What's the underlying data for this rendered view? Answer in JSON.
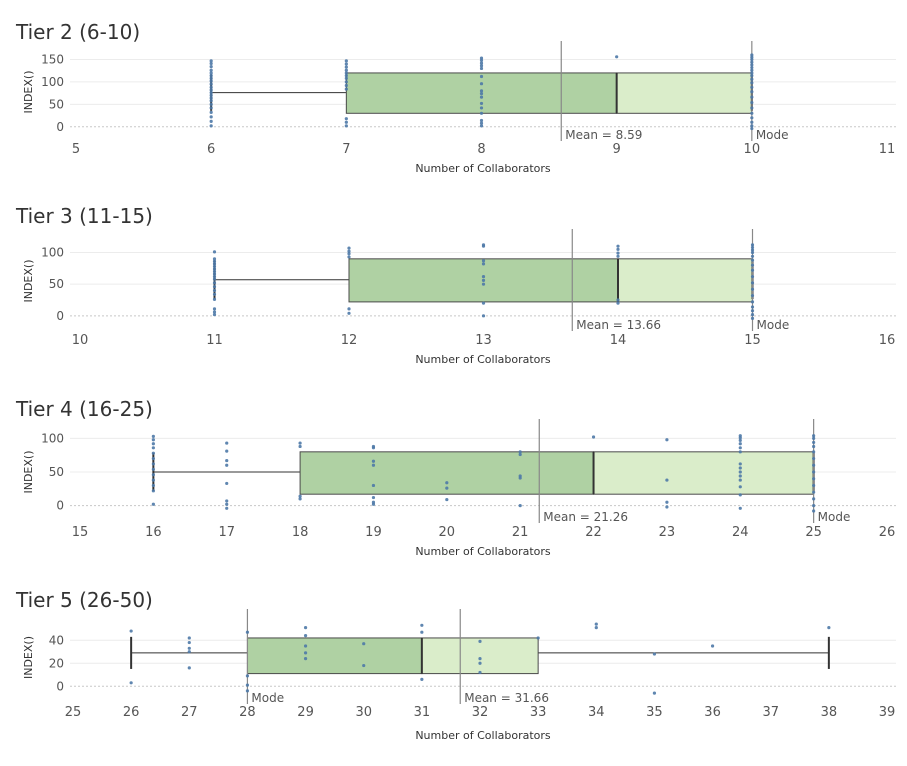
{
  "colors": {
    "box_lower": "#afd1a3",
    "box_upper": "#daedca",
    "box_stroke": "#4a4a4a",
    "whisker": "#333333",
    "points": "#4e79a7",
    "mean_line": "#888888",
    "gridline": "#ececec",
    "zero_line": "#c8c8c8",
    "text": "#555555"
  },
  "chart_data": [
    {
      "type": "boxplot",
      "title": "Tier 2 (6-10)",
      "xlabel": "Number of Collaborators",
      "ylabel": "INDEX()",
      "xlim": [
        5,
        11
      ],
      "ylim": [
        -5,
        160
      ],
      "xticks": [
        5,
        6,
        7,
        8,
        9,
        10,
        11
      ],
      "yticks": [
        0,
        50,
        100,
        150
      ],
      "box": {
        "whisker_low": 6,
        "q1": 7,
        "median": 9,
        "q3": 10,
        "whisker_high": 10
      },
      "whisker_y": 76,
      "box_y": [
        30,
        120
      ],
      "mean": {
        "value": 8.59,
        "label": "Mean = 8.59"
      },
      "mode": {
        "value": 10,
        "label": "Mode"
      },
      "points": [
        [
          6,
          2
        ],
        [
          6,
          12
        ],
        [
          6,
          22
        ],
        [
          6,
          32
        ],
        [
          6,
          42
        ],
        [
          6,
          50
        ],
        [
          6,
          58
        ],
        [
          6,
          64
        ],
        [
          6,
          70
        ],
        [
          6,
          76
        ],
        [
          6,
          82
        ],
        [
          6,
          88
        ],
        [
          6,
          95
        ],
        [
          6,
          102
        ],
        [
          6,
          108
        ],
        [
          6,
          114
        ],
        [
          6,
          120
        ],
        [
          6,
          126
        ],
        [
          6,
          134
        ],
        [
          6,
          141
        ],
        [
          6,
          147
        ],
        [
          7,
          2
        ],
        [
          7,
          10
        ],
        [
          7,
          18
        ],
        [
          7,
          84
        ],
        [
          7,
          92
        ],
        [
          7,
          100
        ],
        [
          7,
          108
        ],
        [
          7,
          114
        ],
        [
          7,
          120
        ],
        [
          7,
          126
        ],
        [
          7,
          133
        ],
        [
          7,
          140
        ],
        [
          7,
          147
        ],
        [
          8,
          2
        ],
        [
          8,
          8
        ],
        [
          8,
          14
        ],
        [
          8,
          30
        ],
        [
          8,
          42
        ],
        [
          8,
          52
        ],
        [
          8,
          66
        ],
        [
          8,
          74
        ],
        [
          8,
          80
        ],
        [
          8,
          96
        ],
        [
          8,
          112
        ],
        [
          8,
          130
        ],
        [
          8,
          136
        ],
        [
          8,
          142
        ],
        [
          8,
          148
        ],
        [
          8,
          153
        ],
        [
          9,
          156
        ],
        [
          10,
          -4
        ],
        [
          10,
          2
        ],
        [
          10,
          10
        ],
        [
          10,
          20
        ],
        [
          10,
          30
        ],
        [
          10,
          42
        ],
        [
          10,
          54
        ],
        [
          10,
          66
        ],
        [
          10,
          78
        ],
        [
          10,
          88
        ],
        [
          10,
          98
        ],
        [
          10,
          106
        ],
        [
          10,
          114
        ],
        [
          10,
          120
        ],
        [
          10,
          126
        ],
        [
          10,
          132
        ],
        [
          10,
          138
        ],
        [
          10,
          144
        ],
        [
          10,
          150
        ],
        [
          10,
          155
        ],
        [
          10,
          160
        ]
      ]
    },
    {
      "type": "boxplot",
      "title": "Tier 3 (11-15)",
      "xlabel": "Number of Collaborators",
      "ylabel": "INDEX()",
      "xlim": [
        10,
        16
      ],
      "ylim": [
        -5,
        115
      ],
      "xticks": [
        10,
        11,
        12,
        13,
        14,
        15,
        16
      ],
      "yticks": [
        0,
        50,
        100
      ],
      "box": {
        "whisker_low": 11,
        "q1": 12,
        "median": 14,
        "q3": 15,
        "whisker_high": 15
      },
      "whisker_y": 57,
      "box_y": [
        22,
        90
      ],
      "mean": {
        "value": 13.66,
        "label": "Mean = 13.66"
      },
      "mode": {
        "value": 15,
        "label": "Mode"
      },
      "points": [
        [
          11,
          2
        ],
        [
          11,
          6
        ],
        [
          11,
          11
        ],
        [
          11,
          26
        ],
        [
          11,
          34
        ],
        [
          11,
          40
        ],
        [
          11,
          46
        ],
        [
          11,
          52
        ],
        [
          11,
          58
        ],
        [
          11,
          62
        ],
        [
          11,
          66
        ],
        [
          11,
          70
        ],
        [
          11,
          74
        ],
        [
          11,
          78
        ],
        [
          11,
          82
        ],
        [
          11,
          86
        ],
        [
          11,
          90
        ],
        [
          11,
          101
        ],
        [
          12,
          4
        ],
        [
          12,
          11
        ],
        [
          12,
          93
        ],
        [
          12,
          98
        ],
        [
          12,
          102
        ],
        [
          12,
          107
        ],
        [
          13,
          0
        ],
        [
          13,
          20
        ],
        [
          13,
          50
        ],
        [
          13,
          56
        ],
        [
          13,
          62
        ],
        [
          13,
          82
        ],
        [
          13,
          87
        ],
        [
          13,
          110
        ],
        [
          13,
          112
        ],
        [
          14,
          20
        ],
        [
          14,
          25
        ],
        [
          14,
          94
        ],
        [
          14,
          99
        ],
        [
          14,
          105
        ],
        [
          14,
          110
        ],
        [
          15,
          -4
        ],
        [
          15,
          2
        ],
        [
          15,
          8
        ],
        [
          15,
          14
        ],
        [
          15,
          22
        ],
        [
          15,
          32
        ],
        [
          15,
          42
        ],
        [
          15,
          52
        ],
        [
          15,
          62
        ],
        [
          15,
          72
        ],
        [
          15,
          80
        ],
        [
          15,
          88
        ],
        [
          15,
          94
        ],
        [
          15,
          100
        ],
        [
          15,
          104
        ],
        [
          15,
          108
        ],
        [
          15,
          112
        ]
      ]
    },
    {
      "type": "boxplot",
      "title": "Tier 4 (16-25)",
      "xlabel": "Number of Collaborators",
      "ylabel": "INDEX()",
      "xlim": [
        15,
        26
      ],
      "ylim": [
        -8,
        108
      ],
      "xticks": [
        15,
        16,
        17,
        18,
        19,
        20,
        21,
        22,
        23,
        24,
        25,
        26
      ],
      "yticks": [
        0,
        50,
        100
      ],
      "box": {
        "whisker_low": 16,
        "q1": 18,
        "median": 22,
        "q3": 25,
        "whisker_high": 25
      },
      "whisker_y": 50,
      "box_y": [
        17,
        80
      ],
      "mean": {
        "value": 21.26,
        "label": "Mean = 21.26"
      },
      "mode": {
        "value": 25,
        "label": "Mode"
      },
      "points": [
        [
          16,
          2
        ],
        [
          16,
          22
        ],
        [
          16,
          30
        ],
        [
          16,
          38
        ],
        [
          16,
          46
        ],
        [
          16,
          54
        ],
        [
          16,
          62
        ],
        [
          16,
          70
        ],
        [
          16,
          78
        ],
        [
          16,
          86
        ],
        [
          16,
          92
        ],
        [
          16,
          98
        ],
        [
          16,
          103
        ],
        [
          17,
          -4
        ],
        [
          17,
          2
        ],
        [
          17,
          7
        ],
        [
          17,
          33
        ],
        [
          17,
          60
        ],
        [
          17,
          67
        ],
        [
          17,
          81
        ],
        [
          17,
          93
        ],
        [
          18,
          10
        ],
        [
          18,
          14
        ],
        [
          18,
          88
        ],
        [
          18,
          93
        ],
        [
          19,
          2
        ],
        [
          19,
          5
        ],
        [
          19,
          12
        ],
        [
          19,
          30
        ],
        [
          19,
          60
        ],
        [
          19,
          66
        ],
        [
          19,
          86
        ],
        [
          19,
          88
        ],
        [
          20,
          9
        ],
        [
          20,
          26
        ],
        [
          20,
          34
        ],
        [
          21,
          0
        ],
        [
          21,
          41
        ],
        [
          21,
          44
        ],
        [
          21,
          76
        ],
        [
          21,
          80
        ],
        [
          22,
          102
        ],
        [
          23,
          -2
        ],
        [
          23,
          5
        ],
        [
          23,
          38
        ],
        [
          23,
          98
        ],
        [
          24,
          -4
        ],
        [
          24,
          16
        ],
        [
          24,
          28
        ],
        [
          24,
          38
        ],
        [
          24,
          44
        ],
        [
          24,
          50
        ],
        [
          24,
          56
        ],
        [
          24,
          62
        ],
        [
          24,
          80
        ],
        [
          24,
          86
        ],
        [
          24,
          92
        ],
        [
          24,
          97
        ],
        [
          24,
          101
        ],
        [
          24,
          104
        ],
        [
          25,
          -8
        ],
        [
          25,
          0
        ],
        [
          25,
          10
        ],
        [
          25,
          20
        ],
        [
          25,
          30
        ],
        [
          25,
          40
        ],
        [
          25,
          50
        ],
        [
          25,
          60
        ],
        [
          25,
          70
        ],
        [
          25,
          80
        ],
        [
          25,
          88
        ],
        [
          25,
          94
        ],
        [
          25,
          100
        ],
        [
          25,
          104
        ]
      ]
    },
    {
      "type": "boxplot",
      "title": "Tier 5 (26-50)",
      "xlabel": "Number of Collaborators",
      "ylabel": "INDEX()",
      "xlim": [
        25,
        39
      ],
      "ylim": [
        -5,
        55
      ],
      "xticks": [
        25,
        26,
        27,
        28,
        29,
        30,
        31,
        32,
        33,
        34,
        35,
        36,
        37,
        38,
        39
      ],
      "yticks": [
        0,
        20,
        40
      ],
      "box": {
        "whisker_low": 26,
        "q1": 28,
        "median": 31,
        "q3": 33,
        "whisker_high": 38
      },
      "whisker_y": 29,
      "box_y": [
        11,
        42
      ],
      "mean": {
        "value": 31.66,
        "label": "Mean = 31.66"
      },
      "mode": {
        "value": 28,
        "label": "Mode"
      },
      "points": [
        [
          26,
          3
        ],
        [
          26,
          48
        ],
        [
          27,
          16
        ],
        [
          27,
          30
        ],
        [
          27,
          33
        ],
        [
          27,
          38
        ],
        [
          27,
          42
        ],
        [
          28,
          -4
        ],
        [
          28,
          1
        ],
        [
          28,
          9
        ],
        [
          28,
          47
        ],
        [
          29,
          24
        ],
        [
          29,
          29
        ],
        [
          29,
          35
        ],
        [
          29,
          44
        ],
        [
          29,
          51
        ],
        [
          30,
          18
        ],
        [
          30,
          37
        ],
        [
          31,
          6
        ],
        [
          31,
          47
        ],
        [
          31,
          53
        ],
        [
          32,
          12
        ],
        [
          32,
          20
        ],
        [
          32,
          24
        ],
        [
          32,
          39
        ],
        [
          33,
          42
        ],
        [
          34,
          51
        ],
        [
          34,
          54
        ],
        [
          35,
          -6
        ],
        [
          35,
          28
        ],
        [
          36,
          35
        ],
        [
          38,
          51
        ]
      ]
    }
  ]
}
